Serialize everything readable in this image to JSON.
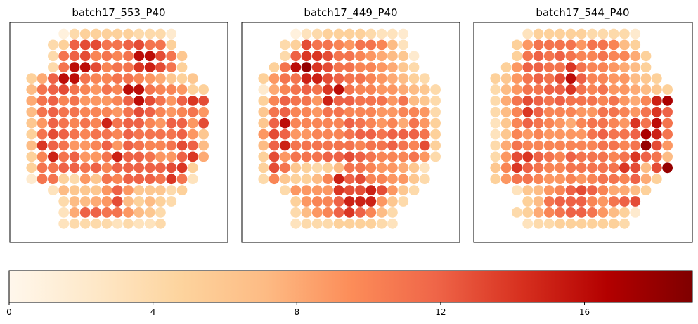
{
  "chart_data": {
    "type": "heatmap",
    "colormap": "OrRd",
    "colorbar": {
      "vmin": 0,
      "vmax": 19,
      "ticks": [
        0,
        4,
        8,
        12,
        16
      ],
      "tick_labels": [
        "0",
        "4",
        "8",
        "12",
        "16"
      ],
      "orientation": "horizontal",
      "placement": "bottom"
    },
    "panels": [
      {
        "title": "batch17_553_P40",
        "rows": [
          [
            1,
            4,
            5,
            5,
            5,
            5,
            5,
            4,
            4,
            4,
            2
          ],
          [
            4,
            5,
            12,
            13,
            13,
            11,
            11,
            12,
            13,
            11,
            11,
            5
          ],
          [
            4,
            11,
            12,
            13,
            10,
            11,
            10,
            11,
            16,
            16,
            13,
            11,
            6
          ],
          [
            4,
            11,
            16,
            16,
            13,
            10,
            11,
            11,
            14,
            15,
            13,
            11,
            5
          ],
          [
            5,
            8,
            12,
            16,
            16,
            11,
            10,
            10,
            11,
            11,
            10,
            9,
            8,
            6,
            5,
            6
          ],
          [
            7,
            11,
            12,
            13,
            11,
            10,
            9,
            11,
            10,
            16,
            16,
            11,
            10,
            10,
            9,
            5,
            5
          ],
          [
            8,
            11,
            12,
            10,
            11,
            9,
            9,
            9,
            10,
            12,
            16,
            13,
            11,
            9,
            12,
            14,
            13
          ],
          [
            7,
            11,
            12,
            11,
            11,
            10,
            10,
            10,
            9,
            11,
            13,
            12,
            10,
            9,
            10,
            11,
            9
          ],
          [
            6,
            9,
            12,
            11,
            10,
            11,
            10,
            15,
            11,
            12,
            12,
            10,
            9,
            12,
            12,
            9,
            13
          ],
          [
            5,
            11,
            13,
            12,
            11,
            10,
            11,
            11,
            10,
            12,
            11,
            11,
            11,
            11,
            12,
            9,
            6
          ],
          [
            7,
            14,
            12,
            11,
            9,
            9,
            10,
            12,
            9,
            12,
            11,
            10,
            10,
            11,
            13,
            12,
            7
          ],
          [
            5,
            10,
            15,
            11,
            12,
            9,
            9,
            11,
            15,
            12,
            12,
            11,
            9,
            9,
            12,
            14,
            8
          ],
          [
            5,
            11,
            11,
            12,
            12,
            11,
            12,
            10,
            12,
            12,
            12,
            12,
            12,
            13,
            14,
            5
          ],
          [
            2,
            11,
            11,
            5,
            4,
            9,
            6,
            11,
            10,
            12,
            12,
            12,
            11,
            14,
            11,
            3
          ],
          [
            3,
            7,
            6,
            6,
            6,
            9,
            12,
            9,
            6,
            6,
            6,
            4,
            5
          ],
          [
            4,
            7,
            7,
            8,
            9,
            13,
            7,
            5,
            7,
            5,
            4
          ],
          [
            3,
            8,
            12,
            12,
            11,
            11,
            9,
            7,
            6,
            4
          ],
          [
            3,
            4,
            4,
            4,
            4,
            3,
            4,
            3,
            3,
            4
          ]
        ]
      },
      {
        "title": "batch17_449_P40",
        "rows": [
          [
            1,
            3,
            4,
            5,
            5,
            5,
            5,
            4,
            3,
            3,
            2
          ],
          [
            4,
            5,
            13,
            11,
            11,
            10,
            9,
            11,
            11,
            10,
            7,
            3
          ],
          [
            4,
            12,
            14,
            14,
            13,
            11,
            11,
            10,
            9,
            8,
            7,
            6,
            2
          ],
          [
            5,
            11,
            16,
            18,
            14,
            13,
            11,
            11,
            10,
            10,
            9,
            8,
            6,
            4
          ],
          [
            5,
            9,
            11,
            11,
            15,
            15,
            13,
            12,
            11,
            11,
            10,
            9,
            8,
            7,
            5,
            4
          ],
          [
            2,
            8,
            10,
            11,
            12,
            11,
            14,
            16,
            11,
            10,
            10,
            9,
            9,
            8,
            7,
            6,
            4
          ],
          [
            5,
            10,
            12,
            11,
            11,
            9,
            15,
            12,
            12,
            11,
            11,
            11,
            9,
            11,
            7,
            6,
            4
          ],
          [
            6,
            11,
            12,
            10,
            10,
            9,
            11,
            11,
            10,
            10,
            10,
            9,
            9,
            10,
            10,
            9,
            4
          ],
          [
            6,
            12,
            16,
            10,
            10,
            10,
            10,
            10,
            12,
            11,
            10,
            9,
            10,
            8,
            11,
            9,
            5
          ],
          [
            9,
            13,
            12,
            9,
            9,
            10,
            10,
            10,
            11,
            12,
            12,
            11,
            12,
            12,
            12,
            11,
            5
          ],
          [
            7,
            12,
            15,
            11,
            11,
            11,
            11,
            11,
            11,
            10,
            11,
            11,
            12,
            11,
            10,
            13,
            5
          ],
          [
            5,
            13,
            9,
            11,
            11,
            11,
            12,
            12,
            13,
            12,
            11,
            10,
            10,
            10,
            11,
            9,
            4
          ],
          [
            5,
            13,
            11,
            6,
            5,
            4,
            5,
            7,
            11,
            11,
            10,
            9,
            9,
            8,
            6,
            3
          ],
          [
            4,
            10,
            6,
            5,
            5,
            7,
            10,
            15,
            12,
            13,
            10,
            10,
            9,
            9,
            6,
            4
          ],
          [
            4,
            9,
            9,
            9,
            9,
            14,
            13,
            13,
            15,
            13,
            9,
            6,
            4
          ],
          [
            5,
            9,
            10,
            10,
            12,
            15,
            15,
            15,
            9,
            6,
            4
          ],
          [
            4,
            7,
            9,
            10,
            12,
            14,
            12,
            10,
            7,
            4
          ],
          [
            3,
            4,
            4,
            4,
            5,
            5,
            5,
            5,
            4,
            3
          ]
        ]
      },
      {
        "title": "batch17_544_P40",
        "rows": [
          [
            3,
            5,
            5,
            5,
            5,
            5,
            4,
            4,
            4,
            4,
            2
          ],
          [
            5,
            9,
            11,
            11,
            11,
            11,
            9,
            11,
            11,
            10,
            7,
            5
          ],
          [
            5,
            11,
            12,
            11,
            12,
            11,
            10,
            10,
            11,
            10,
            10,
            8,
            5
          ],
          [
            5,
            9,
            12,
            12,
            11,
            11,
            14,
            11,
            10,
            10,
            9,
            8,
            7,
            5
          ],
          [
            5,
            6,
            9,
            11,
            12,
            11,
            13,
            16,
            12,
            10,
            10,
            9,
            9,
            7,
            6,
            5
          ],
          [
            4,
            7,
            9,
            11,
            11,
            12,
            12,
            14,
            11,
            10,
            11,
            9,
            9,
            8,
            7,
            6,
            5
          ],
          [
            4,
            8,
            11,
            13,
            12,
            11,
            12,
            11,
            11,
            11,
            10,
            11,
            9,
            8,
            10,
            15,
            17
          ],
          [
            4,
            7,
            10,
            14,
            12,
            10,
            10,
            10,
            9,
            9,
            11,
            11,
            10,
            9,
            11,
            14,
            12
          ],
          [
            3,
            6,
            10,
            12,
            11,
            10,
            9,
            8,
            10,
            11,
            11,
            10,
            9,
            14,
            11,
            16,
            11
          ],
          [
            3,
            6,
            10,
            9,
            10,
            9,
            9,
            9,
            9,
            11,
            12,
            11,
            11,
            12,
            17,
            15,
            11
          ],
          [
            4,
            8,
            11,
            10,
            10,
            10,
            10,
            10,
            10,
            10,
            11,
            11,
            10,
            11,
            18,
            13,
            9
          ],
          [
            4,
            9,
            13,
            14,
            12,
            11,
            10,
            12,
            11,
            11,
            11,
            10,
            11,
            14,
            12,
            11,
            7
          ],
          [
            6,
            10,
            14,
            12,
            11,
            10,
            10,
            11,
            11,
            11,
            11,
            11,
            14,
            13,
            7,
            13,
            18
          ],
          [
            5,
            9,
            11,
            11,
            10,
            9,
            9,
            10,
            9,
            10,
            11,
            11,
            10,
            12,
            8,
            5
          ],
          [
            3,
            6,
            7,
            9,
            10,
            12,
            13,
            12,
            10,
            8,
            8,
            7,
            5
          ],
          [
            5,
            7,
            11,
            12,
            12,
            12,
            10,
            9,
            11,
            12,
            13
          ],
          [
            4,
            5,
            8,
            10,
            11,
            12,
            12,
            11,
            9,
            7,
            5,
            2
          ],
          [
            3,
            4,
            4,
            5,
            5,
            5,
            5,
            5,
            5,
            4
          ]
        ]
      }
    ]
  }
}
